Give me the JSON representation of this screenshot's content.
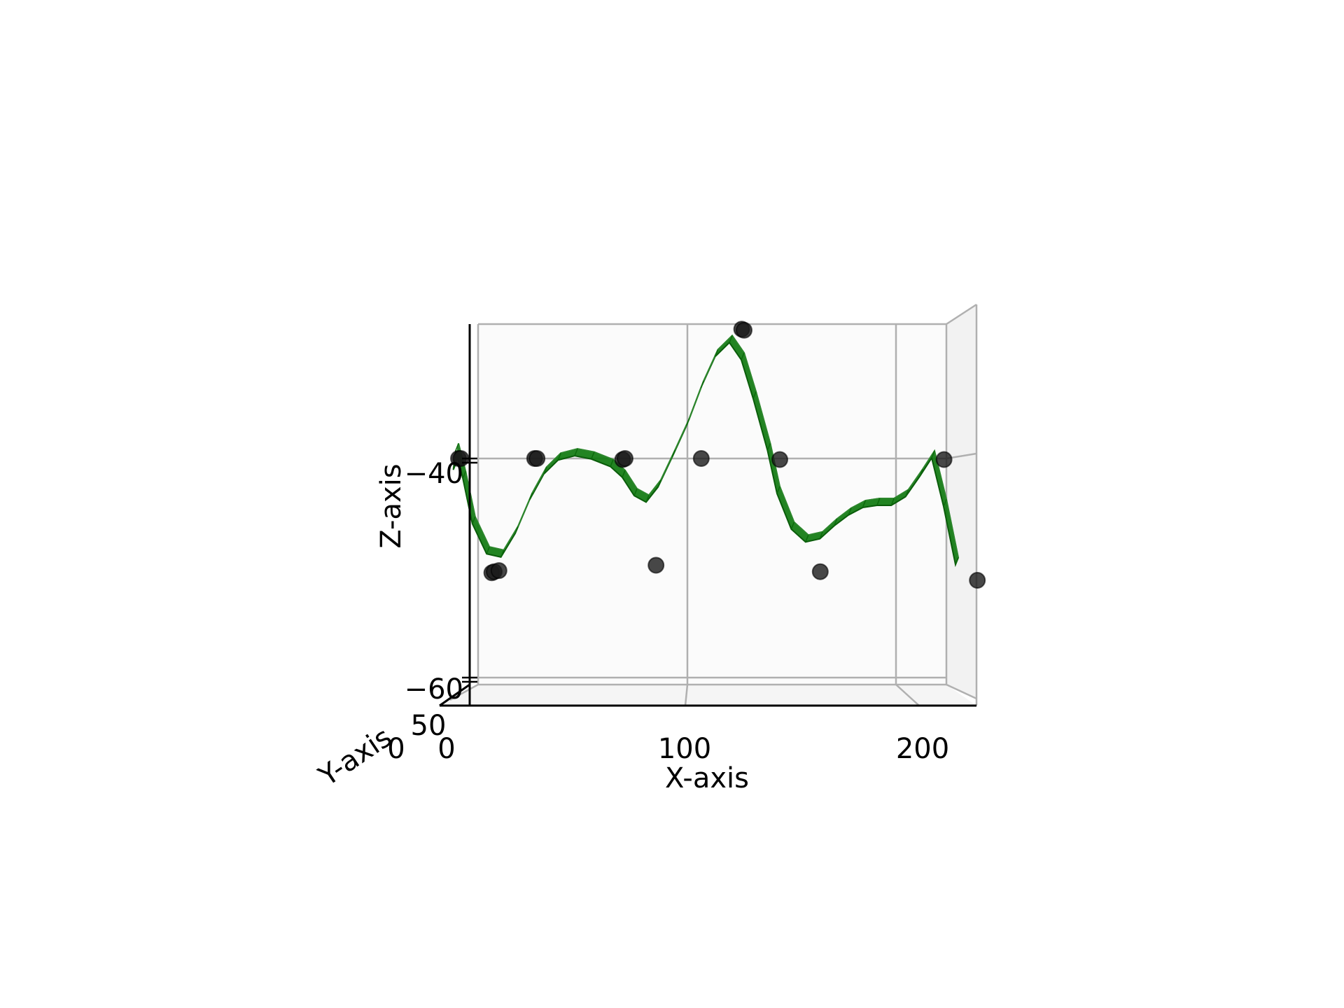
{
  "chart_data": {
    "type": "surface3d",
    "title": "",
    "xlabel": "X-axis",
    "ylabel": "Y-axis",
    "zlabel": "Z-axis",
    "x_ticks": [
      {
        "value": 0,
        "label": "0"
      },
      {
        "value": 100,
        "label": "100"
      },
      {
        "value": 200,
        "label": "200"
      }
    ],
    "y_ticks": [
      {
        "value": 0,
        "label": "0"
      },
      {
        "value": 50,
        "label": "50"
      }
    ],
    "z_ticks": [
      {
        "value": -40,
        "label": "−40"
      },
      {
        "value": -60,
        "label": "−60"
      }
    ],
    "xlim": [
      -16,
      226
    ],
    "zlim": [
      -63.9,
      -27.6
    ],
    "grid": true,
    "colors": {
      "surface": "#0f7a0f",
      "surface_edge": "#0a5c0a",
      "points": "#1a1a1a",
      "grid": "#b0b0b0",
      "axis": "#000000"
    },
    "surface_profile": {
      "x": [
        4,
        5,
        8,
        12,
        18,
        24,
        30,
        36,
        42,
        48,
        55,
        62,
        70,
        75,
        80,
        85,
        90,
        96,
        102,
        108,
        114,
        120,
        125,
        130,
        136,
        140,
        146,
        152,
        158,
        164,
        170,
        176,
        182,
        188,
        194,
        200,
        205,
        210,
        215
      ],
      "z": [
        -40.4,
        -38.6,
        -41.2,
        -45.4,
        -48.2,
        -48.5,
        -46.3,
        -43.2,
        -40.8,
        -39.5,
        -39.1,
        -39.4,
        -40.1,
        -41.1,
        -42.8,
        -43.4,
        -42.0,
        -39.2,
        -36.3,
        -32.8,
        -29.9,
        -28.6,
        -30.2,
        -33.8,
        -38.6,
        -42.6,
        -45.9,
        -47.1,
        -46.8,
        -45.6,
        -44.6,
        -43.9,
        -43.7,
        -43.7,
        -42.9,
        -41.0,
        -39.3,
        -43.8,
        -49.2
      ]
    },
    "points": [
      {
        "x": 5,
        "z": -40.0
      },
      {
        "x": 6,
        "z": -40.0
      },
      {
        "x": 19,
        "z": -50.6
      },
      {
        "x": 20,
        "z": -50.5
      },
      {
        "x": 22,
        "z": -50.4
      },
      {
        "x": 37,
        "z": -40.0
      },
      {
        "x": 38,
        "z": -40.0
      },
      {
        "x": 74,
        "z": -40.1
      },
      {
        "x": 75,
        "z": -40.0
      },
      {
        "x": 88,
        "z": -49.9
      },
      {
        "x": 107,
        "z": -40.0
      },
      {
        "x": 124,
        "z": -28.0
      },
      {
        "x": 125,
        "z": -28.1
      },
      {
        "x": 140,
        "z": -40.1
      },
      {
        "x": 157,
        "z": -50.5
      },
      {
        "x": 209,
        "z": -40.1
      },
      {
        "x": 223,
        "z": -51.3
      }
    ]
  }
}
